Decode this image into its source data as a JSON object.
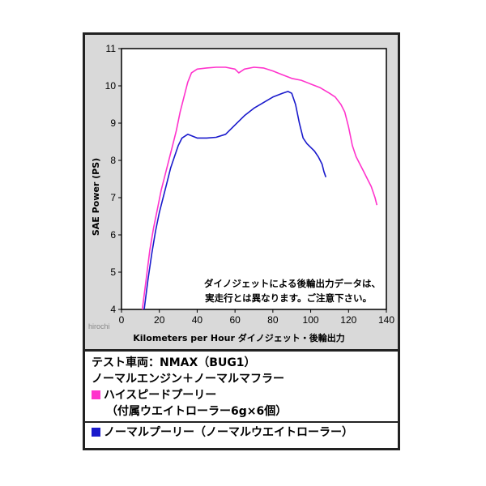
{
  "chart_data": {
    "type": "line",
    "xlabel": "Kilometers per Hour ダイノジェット・後輪出力",
    "ylabel": "SAE Power (PS)",
    "xlim": [
      0,
      140
    ],
    "ylim": [
      4,
      11
    ],
    "x_ticks": [
      "0",
      "20",
      "40",
      "60",
      "80",
      "100",
      "120",
      "140"
    ],
    "y_ticks": [
      "4",
      "5",
      "6",
      "7",
      "8",
      "9",
      "10",
      "11"
    ],
    "grid": false,
    "legend": "below",
    "annotation": [
      "ダイノジェットによる後輪出力データは、",
      "実走行とは異なります。ご注意下さい。"
    ],
    "watermark": "hirochi",
    "series": [
      {
        "name": "ハイスピードプーリー",
        "color": "#ff33cc",
        "points": [
          [
            11,
            4.0
          ],
          [
            13,
            4.8
          ],
          [
            15,
            5.6
          ],
          [
            17,
            6.2
          ],
          [
            19,
            6.7
          ],
          [
            21,
            7.2
          ],
          [
            23,
            7.6
          ],
          [
            25,
            8.0
          ],
          [
            27,
            8.4
          ],
          [
            29,
            8.8
          ],
          [
            31,
            9.3
          ],
          [
            33,
            9.7
          ],
          [
            35,
            10.1
          ],
          [
            37,
            10.35
          ],
          [
            40,
            10.45
          ],
          [
            45,
            10.48
          ],
          [
            50,
            10.5
          ],
          [
            55,
            10.5
          ],
          [
            60,
            10.45
          ],
          [
            62,
            10.35
          ],
          [
            65,
            10.45
          ],
          [
            70,
            10.5
          ],
          [
            75,
            10.48
          ],
          [
            80,
            10.4
          ],
          [
            85,
            10.3
          ],
          [
            90,
            10.2
          ],
          [
            95,
            10.15
          ],
          [
            100,
            10.05
          ],
          [
            105,
            9.95
          ],
          [
            110,
            9.8
          ],
          [
            113,
            9.7
          ],
          [
            116,
            9.5
          ],
          [
            118,
            9.3
          ],
          [
            120,
            8.9
          ],
          [
            122,
            8.4
          ],
          [
            124,
            8.1
          ],
          [
            126,
            7.9
          ],
          [
            128,
            7.7
          ],
          [
            130,
            7.5
          ],
          [
            132,
            7.3
          ],
          [
            134,
            7.0
          ],
          [
            135,
            6.8
          ]
        ]
      },
      {
        "name": "ノーマルプーリー（ノーマルウエイトローラー）",
        "color": "#1a1acc",
        "points": [
          [
            12,
            4.0
          ],
          [
            14,
            4.8
          ],
          [
            16,
            5.5
          ],
          [
            18,
            6.1
          ],
          [
            20,
            6.6
          ],
          [
            22,
            7.0
          ],
          [
            24,
            7.4
          ],
          [
            26,
            7.8
          ],
          [
            28,
            8.1
          ],
          [
            30,
            8.4
          ],
          [
            32,
            8.6
          ],
          [
            35,
            8.7
          ],
          [
            40,
            8.6
          ],
          [
            45,
            8.6
          ],
          [
            50,
            8.62
          ],
          [
            55,
            8.7
          ],
          [
            60,
            8.95
          ],
          [
            65,
            9.2
          ],
          [
            70,
            9.4
          ],
          [
            75,
            9.55
          ],
          [
            80,
            9.7
          ],
          [
            85,
            9.8
          ],
          [
            88,
            9.85
          ],
          [
            90,
            9.8
          ],
          [
            92,
            9.5
          ],
          [
            94,
            9.0
          ],
          [
            96,
            8.6
          ],
          [
            98,
            8.45
          ],
          [
            100,
            8.35
          ],
          [
            102,
            8.25
          ],
          [
            104,
            8.1
          ],
          [
            106,
            7.9
          ],
          [
            107,
            7.7
          ],
          [
            108,
            7.55
          ]
        ]
      }
    ]
  },
  "info": {
    "line1": "テスト車両：NMAX（BUG1）",
    "line2": "ノーマルエンジン＋ノーマルマフラー",
    "legend1": "ハイスピードプーリー",
    "legend1_sub": "（付属ウエイトローラー6g×6個）",
    "legend2": "ノーマルプーリー（ノーマルウエイトローラー）",
    "color1": "#ff33cc",
    "color2": "#1a1acc"
  }
}
